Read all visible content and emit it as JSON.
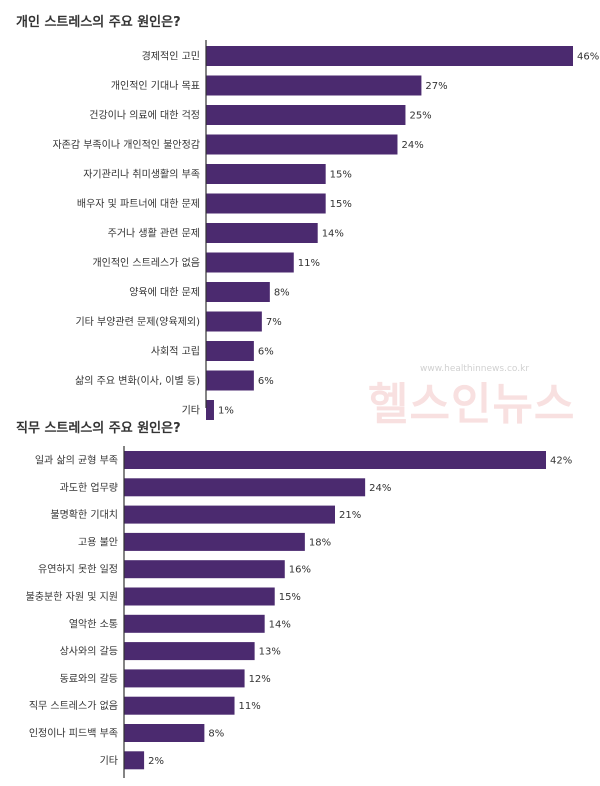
{
  "watermark": {
    "text": "헬스인뉴스",
    "url": "www.healthinnews.co.kr"
  },
  "chart_data": [
    {
      "type": "bar",
      "orientation": "horizontal",
      "title": "개인 스트레스의 주요 원인은?",
      "unit": "%",
      "categories": [
        "경제적인 고민",
        "개인적인 기대나 목표",
        "건강이나 의료에 대한 걱정",
        "자존감 부족이나 개인적인 불안정감",
        "자기관리나 취미생활의 부족",
        "배우자 및 파트너에 대한 문제",
        "주거나 생활 관련 문제",
        "개인적인 스트레스가 없음",
        "양육에 대한 문제",
        "기타 부양관련 문제(양육제외)",
        "사회적 고립",
        "삶의 주요 변화(이사, 이별 등)",
        "기타"
      ],
      "values": [
        46,
        27,
        25,
        24,
        15,
        15,
        14,
        11,
        8,
        7,
        6,
        6,
        1
      ],
      "value_labels": [
        "46%",
        "27%",
        "25%",
        "24%",
        "15%",
        "15%",
        "14%",
        "11%",
        "8%",
        "7%",
        "6%",
        "6%",
        "1%"
      ],
      "xlim": [
        0,
        46
      ],
      "bar_color": "#4b2a6f",
      "grid": false
    },
    {
      "type": "bar",
      "orientation": "horizontal",
      "title": "직무 스트레스의 주요 원인은?",
      "unit": "%",
      "categories": [
        "일과 삶의 균형 부족",
        "과도한 업무량",
        "불명확한 기대치",
        "고용 불안",
        "유연하지 못한 일정",
        "불충분한 자원 및 지원",
        "열악한 소통",
        "상사와의 갈등",
        "동료와의 갈등",
        "직무 스트레스가 없음",
        "인정이나 피드백 부족",
        "기타"
      ],
      "values": [
        42,
        24,
        21,
        18,
        16,
        15,
        14,
        13,
        12,
        11,
        8,
        2
      ],
      "value_labels": [
        "42%",
        "24%",
        "21%",
        "18%",
        "16%",
        "15%",
        "14%",
        "13%",
        "12%",
        "11%",
        "8%",
        "2%"
      ],
      "xlim": [
        0,
        42
      ],
      "bar_color": "#4b2a6f",
      "grid": false
    }
  ]
}
